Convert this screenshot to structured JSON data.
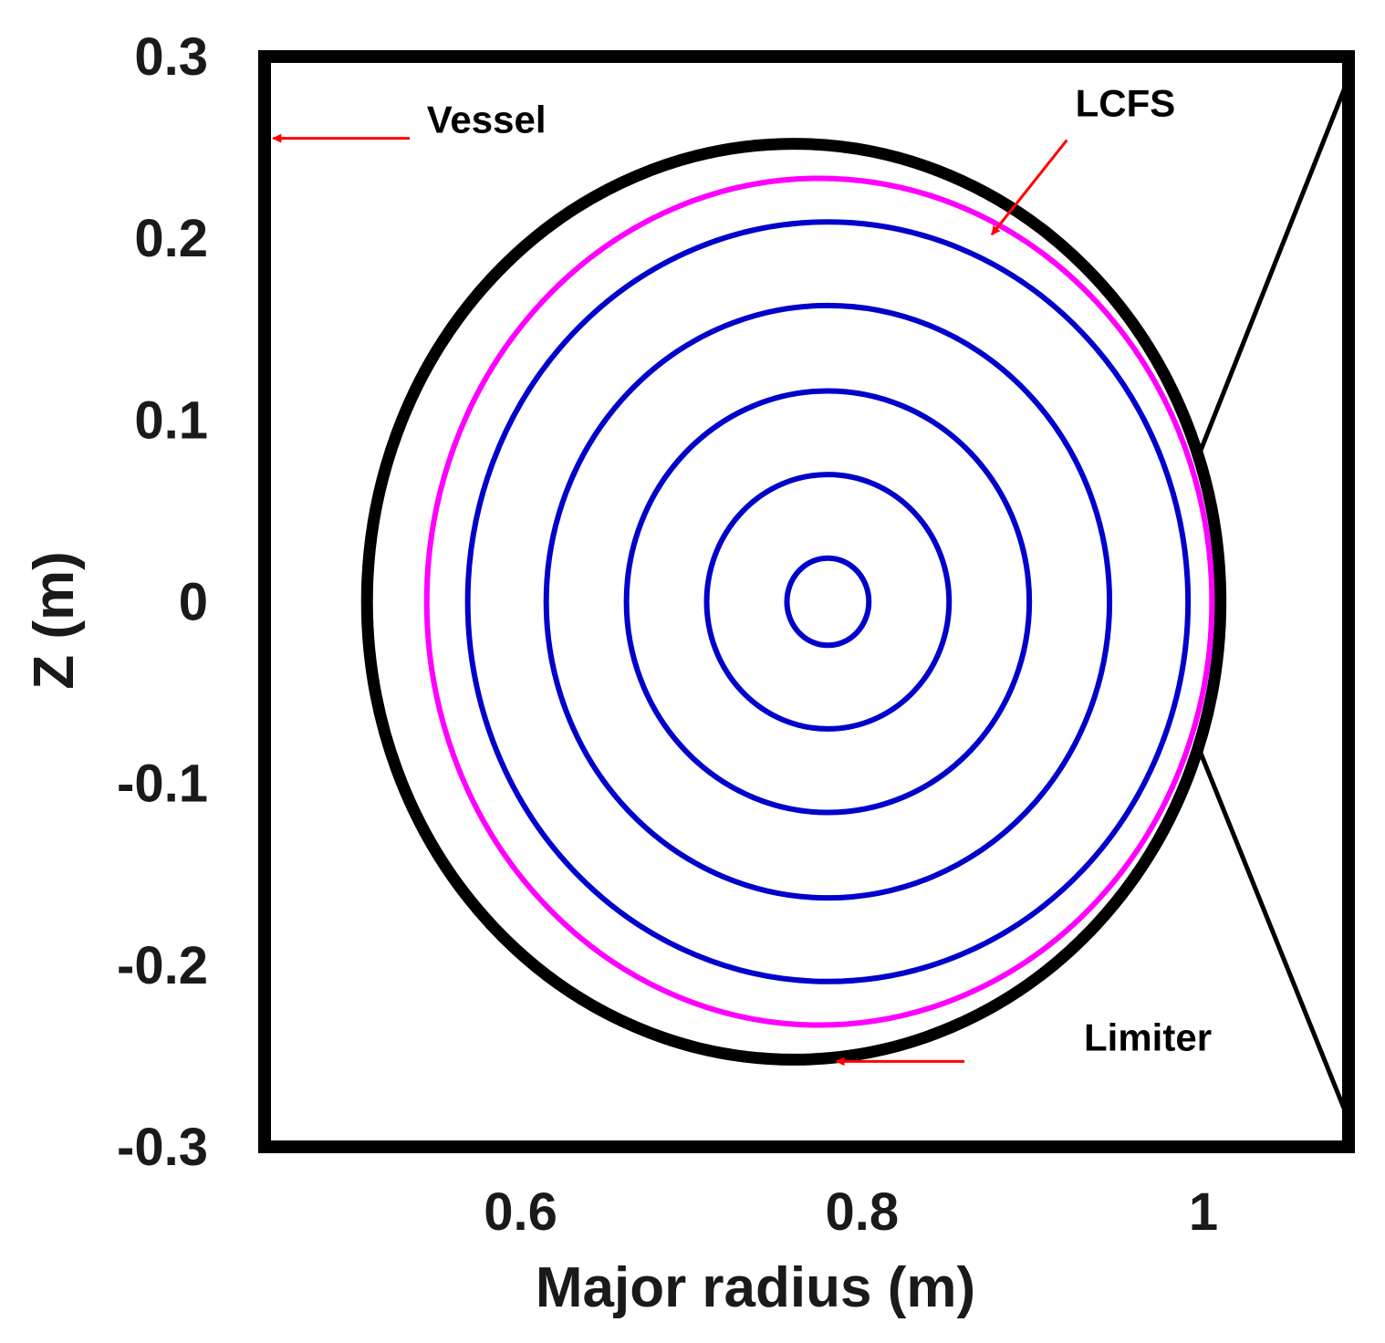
{
  "chart_data": {
    "type": "line",
    "xlabel": "Major radius (m)",
    "ylabel": "Z (m)",
    "xlim": [
      0.45,
      1.085
    ],
    "ylim": [
      -0.3,
      0.3
    ],
    "x_ticks": [
      0.6,
      0.8,
      1
    ],
    "x_tick_labels": [
      "0.6",
      "0.8",
      "1"
    ],
    "y_ticks": [
      0.3,
      0.2,
      0.1,
      0,
      -0.1,
      -0.2,
      -0.3
    ],
    "y_tick_labels": [
      "0.3",
      "0.2",
      "0.1",
      "0",
      "-0.1",
      "-0.2",
      "-0.3"
    ],
    "grid": false,
    "colors": {
      "vessel": "#000000",
      "limiter": "#000000",
      "lcfs": "#ff00ff",
      "flux_surfaces": "#0000cc",
      "annotation": "#ff0000"
    },
    "vessel": {
      "r_min": 0.45,
      "r_max": 1.085,
      "z_min": -0.3,
      "z_max": 0.3
    },
    "limiter": {
      "center_r": 0.76,
      "center_z": 0.0,
      "half_width_r": 0.25,
      "half_height_z": 0.252
    },
    "lcfs": {
      "center_r": 0.775,
      "center_z": 0.0,
      "half_width_r": 0.23,
      "half_height_z": 0.233
    },
    "flux_surfaces": [
      {
        "center_r": 0.78,
        "center_z": 0.0,
        "half_width_r": 0.211,
        "half_height_z": 0.209
      },
      {
        "center_r": 0.78,
        "center_z": 0.0,
        "half_width_r": 0.165,
        "half_height_z": 0.163
      },
      {
        "center_r": 0.78,
        "center_z": 0.0,
        "half_width_r": 0.118,
        "half_height_z": 0.116
      },
      {
        "center_r": 0.78,
        "center_z": 0.0,
        "half_width_r": 0.071,
        "half_height_z": 0.07
      },
      {
        "center_r": 0.78,
        "center_z": 0.0,
        "half_width_r": 0.024,
        "half_height_z": 0.024
      }
    ],
    "limiter_support_lines": [
      {
        "from": [
          0.997,
          0.08
        ],
        "to": [
          1.085,
          0.288
        ]
      },
      {
        "from": [
          0.997,
          -0.08
        ],
        "to": [
          1.085,
          -0.285
        ]
      }
    ],
    "annotations": [
      {
        "text": "Vessel",
        "text_at": [
          0.545,
          0.258
        ],
        "arrow_from": [
          0.535,
          0.255
        ],
        "arrow_to": [
          0.455,
          0.255
        ]
      },
      {
        "text": "LCFS",
        "text_at": [
          0.925,
          0.267
        ],
        "arrow_from": [
          0.92,
          0.254
        ],
        "arrow_to": [
          0.876,
          0.202
        ]
      },
      {
        "text": "Limiter",
        "text_at": [
          0.93,
          -0.247
        ],
        "arrow_from": [
          0.86,
          -0.253
        ],
        "arrow_to": [
          0.785,
          -0.253
        ]
      }
    ]
  }
}
